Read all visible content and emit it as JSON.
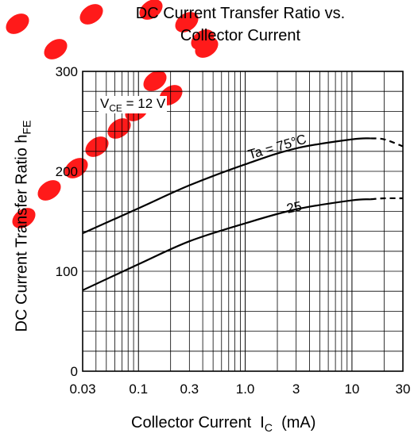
{
  "chart_data": {
    "type": "line",
    "title_line1": "DC Current Transfer Ratio vs.",
    "title_line2": "Collector Current",
    "xlabel": "Collector Current",
    "xlabel_symbol": "I",
    "xlabel_sub": "C",
    "xlabel_unit": "(mA)",
    "ylabel": "DC Current Transfer Ratio",
    "ylabel_symbol": "h",
    "ylabel_sub": "FE",
    "x_scale": "log",
    "xlim": [
      0.03,
      30
    ],
    "ylim": [
      0,
      300
    ],
    "xticks": [
      "0.03",
      "0.1",
      "0.3",
      "1.0",
      "3",
      "10",
      "30"
    ],
    "yticks": [
      "0",
      "100",
      "200",
      "300"
    ],
    "grid": true,
    "condition": {
      "prefix": "V",
      "sub": "CE",
      "value": " = 12 V"
    },
    "series": [
      {
        "name": "Ta = 75°C",
        "x": [
          0.03,
          0.1,
          0.3,
          1.0,
          3,
          10,
          15
        ],
        "y": [
          138,
          163,
          186,
          207,
          223,
          232,
          233
        ],
        "dashed_x": [
          15,
          20,
          30
        ],
        "dashed_y": [
          233,
          232,
          225
        ]
      },
      {
        "name": "25",
        "x": [
          0.03,
          0.1,
          0.3,
          1.0,
          3,
          10,
          15
        ],
        "y": [
          81,
          107,
          130,
          148,
          162,
          171,
          172
        ],
        "dashed_x": [
          15,
          20,
          30
        ],
        "dashed_y": [
          172,
          173,
          173
        ]
      }
    ]
  }
}
